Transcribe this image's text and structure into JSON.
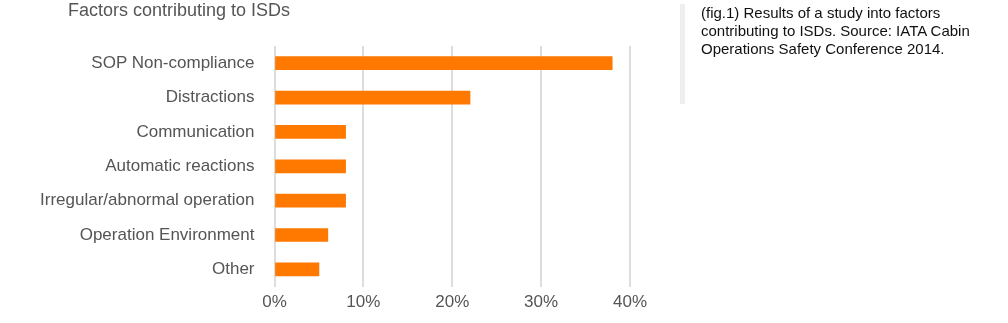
{
  "chart_data": {
    "type": "bar",
    "orientation": "horizontal",
    "title": "Factors contributing to ISDs",
    "categories": [
      "SOP Non-compliance",
      "Distractions",
      "Communication",
      "Automatic reactions",
      "Irregular/abnormal operation",
      "Operation Environment",
      "Other"
    ],
    "values": [
      38,
      22,
      8,
      8,
      8,
      6,
      5
    ],
    "color": "#ff7800",
    "xlim": [
      0,
      40
    ],
    "xticks": [
      {
        "value": 0,
        "label": "0%"
      },
      {
        "value": 10,
        "label": "10%"
      },
      {
        "value": 20,
        "label": "20%"
      },
      {
        "value": 30,
        "label": "30%"
      },
      {
        "value": 40,
        "label": "40%"
      }
    ],
    "grid": "x",
    "legend": false,
    "annotations": [
      "(fig.1) Results of a study into factors contributing to ISDs. Source: IATA Cabin Operations Safety Conference 2014."
    ]
  }
}
